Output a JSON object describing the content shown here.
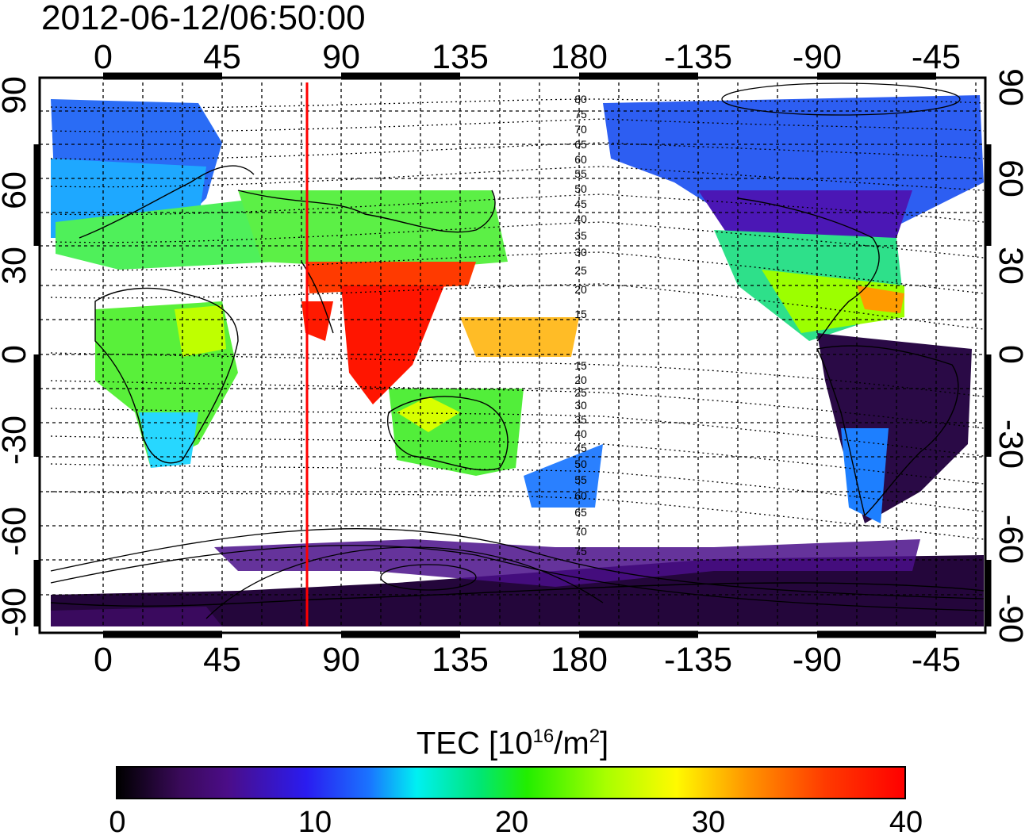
{
  "title": "2012-06-12/06:50:00",
  "map": {
    "lon_ticks": [
      "0",
      "45",
      "90",
      "135",
      "180",
      "-135",
      "-90",
      "-45"
    ],
    "lat_ticks": [
      "90",
      "60",
      "30",
      "0",
      "-30",
      "-60",
      "-90"
    ],
    "magnetic_lat_north": [
      "80",
      "75",
      "70",
      "65",
      "60",
      "55",
      "50",
      "45",
      "40",
      "35",
      "30",
      "25",
      "20",
      "15"
    ],
    "magnetic_lat_south": [
      "15",
      "20",
      "25",
      "30",
      "35",
      "40",
      "45",
      "50",
      "55",
      "60",
      "65",
      "70",
      "75"
    ],
    "marker_longitude": 77,
    "colors": {
      "marker": "#ff0000",
      "grid": "#000000"
    }
  },
  "colorbar": {
    "label_prefix": "TEC  [10",
    "label_exp": "16",
    "label_mid": "/m",
    "label_exp2": "2",
    "label_suffix": "]",
    "ticks": [
      "0",
      "10",
      "20",
      "30",
      "40"
    ],
    "min": 0,
    "max": 40
  }
}
